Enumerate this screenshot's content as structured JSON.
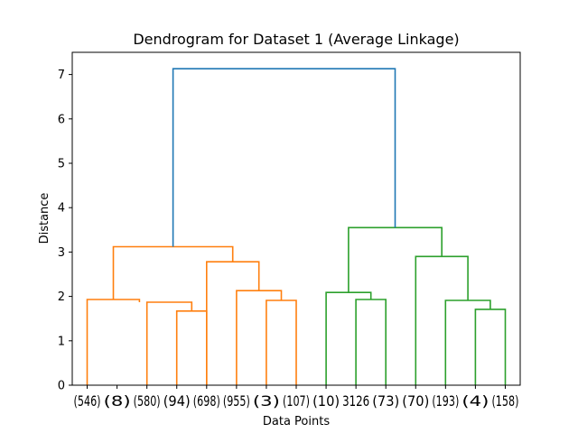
{
  "chart_data": {
    "type": "dendrogram",
    "title": "Dendrogram for Dataset 1 (Average Linkage)",
    "xlabel": "Data Points",
    "ylabel": "Distance",
    "ylim": [
      0,
      7.5
    ],
    "yticks": [
      0,
      1,
      2,
      3,
      4,
      5,
      6,
      7
    ],
    "leaves": [
      "(546)",
      "(8)",
      "(580)",
      "(94)",
      "(698)",
      "(955)",
      "(3)",
      "(107)",
      "(10)",
      "3126",
      "(73)",
      "(70)",
      "(193)",
      "(4)",
      "(158)"
    ],
    "colors": {
      "cluster_1": "#ff7f0e",
      "cluster_2": "#2ca02c",
      "root": "#1f77b4"
    },
    "links": [
      {
        "x": [
          3.5,
          3.5,
          4.5,
          4.5
        ],
        "y": [
          0,
          1.67,
          1.67,
          0
        ],
        "color": "cluster_1"
      },
      {
        "x": [
          2.5,
          2.5,
          4.0,
          4.0
        ],
        "y": [
          0,
          1.87,
          1.87,
          1.67
        ],
        "color": "cluster_1"
      },
      {
        "x": [
          0.5,
          0.5,
          2.25,
          2.25
        ],
        "y": [
          0,
          1.93,
          1.93,
          1.87
        ],
        "color": "cluster_1"
      },
      {
        "x": [
          6.5,
          6.5,
          7.5,
          7.5
        ],
        "y": [
          0,
          1.91,
          1.91,
          0
        ],
        "color": "cluster_1"
      },
      {
        "x": [
          5.5,
          5.5,
          7.0,
          7.0
        ],
        "y": [
          0,
          2.13,
          2.13,
          1.91
        ],
        "color": "cluster_1"
      },
      {
        "x": [
          4.5,
          4.5,
          6.25,
          6.25
        ],
        "y": [
          0,
          2.78,
          2.78,
          2.13
        ],
        "color": "cluster_1"
      },
      {
        "x": [
          1.375,
          1.375,
          5.375,
          5.375
        ],
        "y": [
          1.93,
          3.12,
          3.12,
          2.78
        ],
        "color": "cluster_1"
      },
      {
        "x": [
          9.5,
          9.5,
          10.5,
          10.5
        ],
        "y": [
          0,
          1.93,
          1.93,
          0
        ],
        "color": "cluster_2"
      },
      {
        "x": [
          8.5,
          8.5,
          10.0,
          10.0
        ],
        "y": [
          0,
          2.09,
          2.09,
          1.93
        ],
        "color": "cluster_2"
      },
      {
        "x": [
          13.5,
          13.5,
          14.5,
          14.5
        ],
        "y": [
          0,
          1.71,
          1.71,
          0
        ],
        "color": "cluster_2"
      },
      {
        "x": [
          12.5,
          12.5,
          14.0,
          14.0
        ],
        "y": [
          0,
          1.91,
          1.91,
          1.71
        ],
        "color": "cluster_2"
      },
      {
        "x": [
          11.5,
          11.5,
          13.25,
          13.25
        ],
        "y": [
          0,
          2.9,
          2.9,
          1.91
        ],
        "color": "cluster_2"
      },
      {
        "x": [
          9.25,
          9.25,
          12.375,
          12.375
        ],
        "y": [
          2.09,
          3.55,
          3.55,
          2.9
        ],
        "color": "cluster_2"
      },
      {
        "x": [
          3.375,
          3.375,
          10.8125,
          10.8125
        ],
        "y": [
          3.12,
          7.13,
          7.13,
          3.55
        ],
        "color": "root"
      }
    ]
  }
}
